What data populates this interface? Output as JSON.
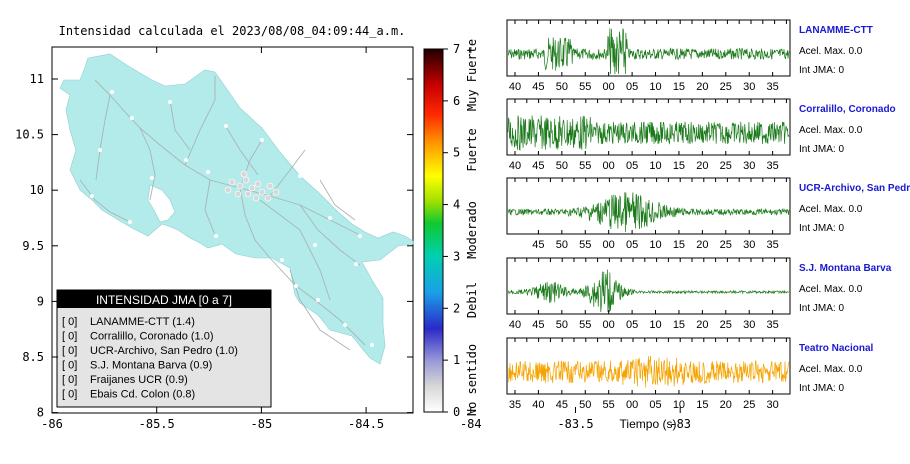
{
  "map": {
    "title": "Intensidad calculada el 2023/08/08_04:09:44_a.m.",
    "x_ticks": [
      "-86",
      "-85.5",
      "-85",
      "-84.5",
      "-84",
      "-83.5",
      "-83"
    ],
    "y_ticks": [
      "11",
      "10.5",
      "10",
      "9.5",
      "9",
      "8.5",
      "8"
    ],
    "land_color": "#b3ebeb",
    "legend": {
      "title": "INTENSIDAD JMA [0 a 7]",
      "items": [
        {
          "value": "[ 0]",
          "label": "LANAMME-CTT (1.4)"
        },
        {
          "value": "[ 0]",
          "label": "Corralillo, Coronado (1.0)"
        },
        {
          "value": "[ 0]",
          "label": "UCR-Archivo, San Pedro (1.0)"
        },
        {
          "value": "[ 0]",
          "label": "S.J. Montana Barva (0.9)"
        },
        {
          "value": "[ 0]",
          "label": "Fraijanes UCR (0.9)"
        },
        {
          "value": "[ 0]",
          "label": "Ebais Cd. Colon (0.8)"
        }
      ]
    }
  },
  "colorbar": {
    "ticks": [
      "7",
      "6",
      "5",
      "4",
      "3",
      "2",
      "1",
      "0"
    ],
    "labels": [
      "Muy Fuerte",
      "Fuerte",
      "Moderado",
      "Debil",
      "No sentido"
    ]
  },
  "seismograms": {
    "xlabel": "Tiempo (s)",
    "panels": [
      {
        "station": "LANAMME-CTT",
        "acel": "Acel. Max. 0.0",
        "intensity": "Int JMA: 0",
        "color": "#1a7a1a",
        "ticks": [
          "40",
          "45",
          "50",
          "55",
          "00",
          "05",
          "10",
          "15",
          "20",
          "25",
          "30",
          "35"
        ]
      },
      {
        "station": "Corralillo, Coronado",
        "acel": "Acel. Max. 0.0",
        "intensity": "Int JMA: 0",
        "color": "#1a7a1a",
        "ticks": [
          "40",
          "45",
          "50",
          "55",
          "00",
          "05",
          "10",
          "15",
          "20",
          "25",
          "30",
          "35"
        ]
      },
      {
        "station": "UCR-Archivo, San Pedro",
        "acel": "Acel. Max. 0.0",
        "intensity": "Int JMA: 0",
        "color": "#1a7a1a",
        "ticks": [
          "45",
          "50",
          "55",
          "00",
          "05",
          "10",
          "15",
          "20",
          "25",
          "30",
          "35"
        ]
      },
      {
        "station": "S.J. Montana Barva",
        "acel": "Acel. Max. 0.0",
        "intensity": "Int JMA: 0",
        "color": "#1a7a1a",
        "ticks": [
          "40",
          "45",
          "50",
          "55",
          "00",
          "05",
          "10",
          "15",
          "20",
          "25",
          "30",
          "35"
        ]
      },
      {
        "station": "Teatro Nacional",
        "acel": "Acel. Max. 0.0",
        "intensity": "Int JMA: 0",
        "color": "#f5a300",
        "ticks": [
          "35",
          "40",
          "45",
          "50",
          "55",
          "00",
          "05",
          "10",
          "15",
          "20",
          "25",
          "30"
        ]
      }
    ]
  },
  "chart_data": [
    {
      "type": "scatter",
      "title": "Intensidad calculada el 2023/08/08_04:09:44_a.m.",
      "xlim": [
        -86,
        -82.55
      ],
      "ylim": [
        8,
        11.3
      ],
      "grid": false,
      "legend_position": "bottom-left"
    },
    {
      "type": "line",
      "xlabel": "Tiempo (s)",
      "series": [
        {
          "name": "LANAMME-CTT"
        },
        {
          "name": "Corralillo, Coronado"
        },
        {
          "name": "UCR-Archivo, San Pedro"
        },
        {
          "name": "S.J. Montana Barva"
        },
        {
          "name": "Teatro Nacional"
        }
      ]
    }
  ]
}
